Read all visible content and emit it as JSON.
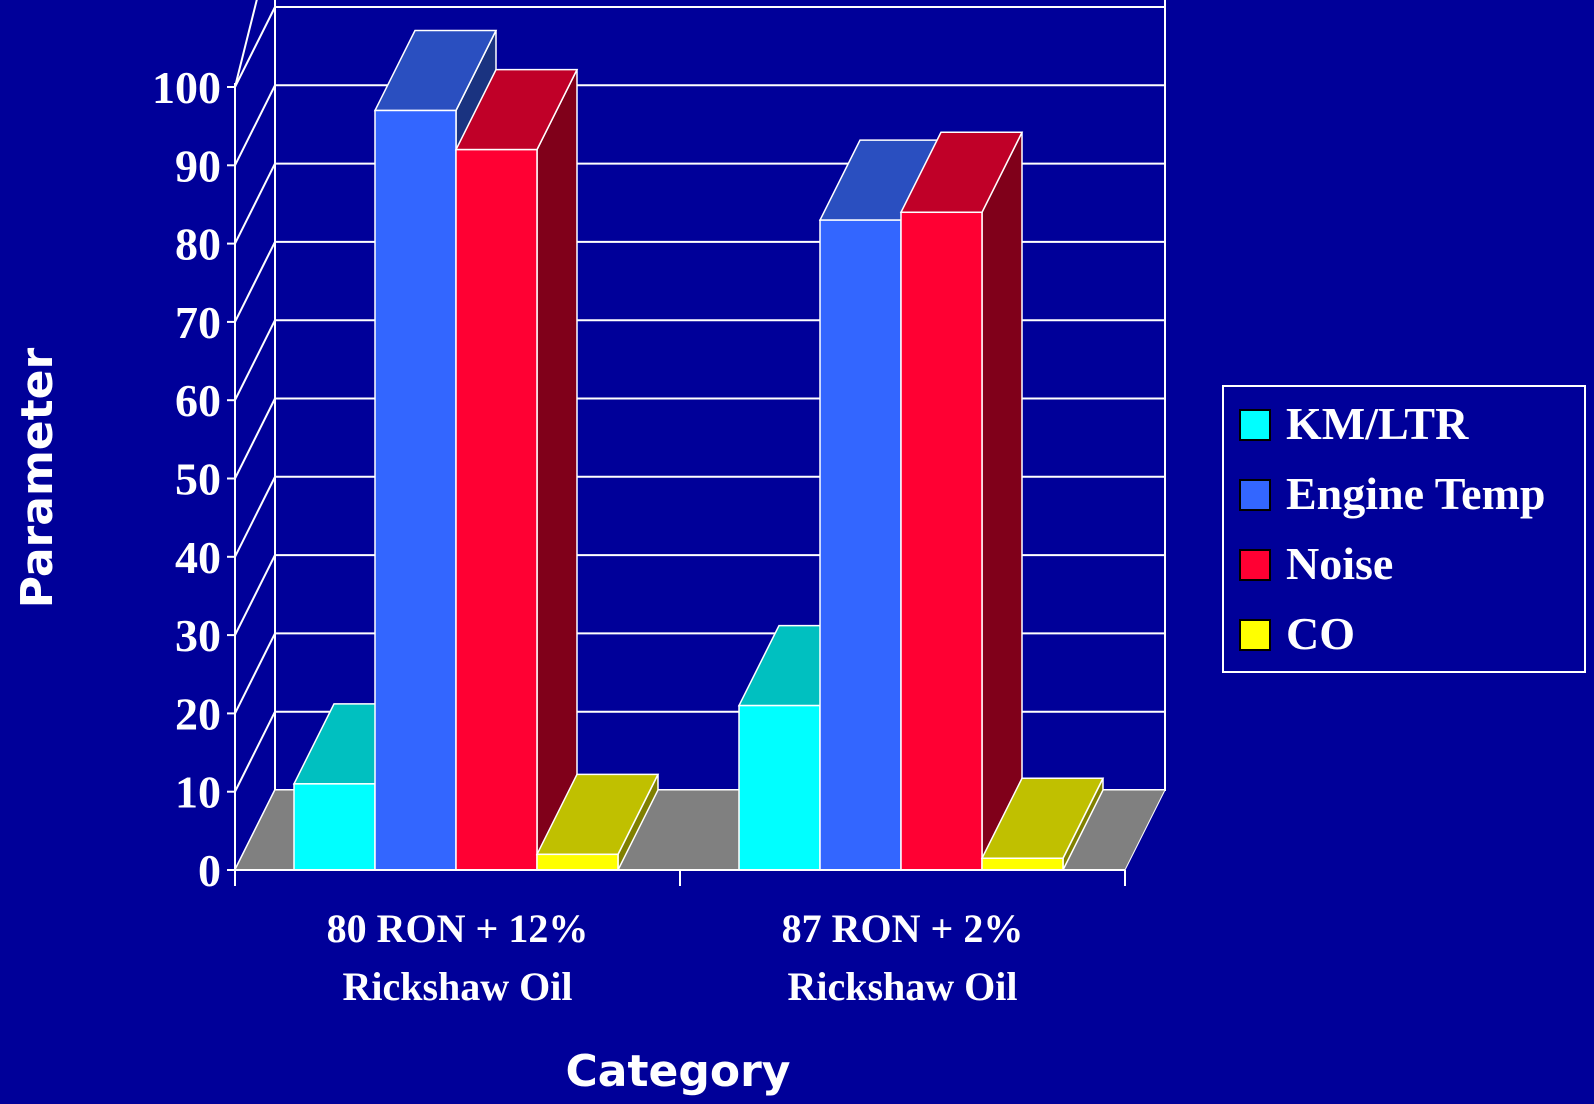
{
  "chart_data": {
    "type": "bar",
    "three_d": true,
    "categories": [
      [
        "80 RON + 12%",
        "Rickshaw Oil"
      ],
      [
        "87 RON + 2%",
        "Rickshaw Oil"
      ]
    ],
    "series": [
      {
        "name": "KM/LTR",
        "values": [
          11,
          21
        ],
        "color": "#00ffff",
        "top_color": "#00c0c0",
        "side_color": "#008080"
      },
      {
        "name": "Engine Temp",
        "values": [
          97,
          83
        ],
        "color": "#3366ff",
        "top_color": "#2a4fc0",
        "side_color": "#1a3380"
      },
      {
        "name": "Noise",
        "values": [
          92,
          84
        ],
        "color": "#ff0033",
        "top_color": "#c00028",
        "side_color": "#80001a"
      },
      {
        "name": "CO",
        "values": [
          2,
          1.5
        ],
        "color": "#ffff00",
        "top_color": "#c0c000",
        "side_color": "#808000"
      }
    ],
    "xlabel": "Category",
    "ylabel": "Parameter",
    "ylim": [
      0,
      100
    ],
    "yticks": [
      0,
      10,
      20,
      30,
      40,
      50,
      60,
      70,
      80,
      90,
      100
    ],
    "grid": true,
    "legend": "right",
    "colors": {
      "background": "#000099",
      "floor": "#808080",
      "gridline": "#ffffff",
      "text": "#ffffff"
    }
  }
}
